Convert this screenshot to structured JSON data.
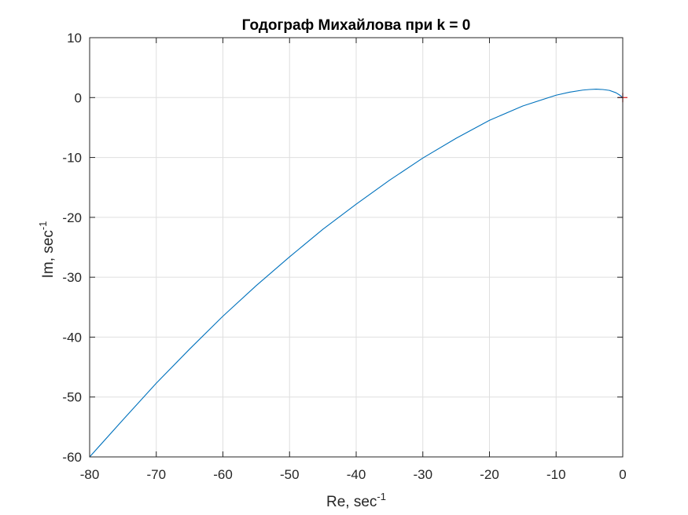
{
  "chart_data": {
    "type": "line",
    "title": "Годограф Михайлова при k = 0",
    "xlabel": {
      "base": "Re, sec",
      "superscript": "-1"
    },
    "ylabel": {
      "base": "Im, sec",
      "superscript": "-1"
    },
    "xlim": [
      -80,
      0
    ],
    "ylim": [
      -60,
      10
    ],
    "x_ticks": [
      -80,
      -70,
      -60,
      -50,
      -40,
      -30,
      -20,
      -10,
      0
    ],
    "y_ticks": [
      -60,
      -50,
      -40,
      -30,
      -20,
      -10,
      0,
      10
    ],
    "grid": true,
    "colors": {
      "series": "#0072bd",
      "marker": "#d62728",
      "axis": "#262626",
      "grid": "#dfdfdf"
    },
    "series": [
      {
        "x": [
          -80,
          -75,
          -70,
          -65,
          -60,
          -55,
          -50,
          -45,
          -40,
          -35,
          -30,
          -25,
          -20,
          -15,
          -10,
          -8,
          -6,
          -5,
          -4,
          -3,
          -2,
          -1,
          -0.5,
          0
        ],
        "y": [
          -60,
          -53.8,
          -47.7,
          -42,
          -36.5,
          -31.4,
          -26.6,
          -22,
          -17.8,
          -13.8,
          -10.1,
          -6.8,
          -3.8,
          -1.4,
          0.4,
          0.9,
          1.25,
          1.35,
          1.4,
          1.35,
          1.2,
          0.8,
          0.45,
          0
        ]
      }
    ],
    "markers": [
      {
        "x": 0,
        "y": 0,
        "symbol": "+"
      }
    ]
  }
}
